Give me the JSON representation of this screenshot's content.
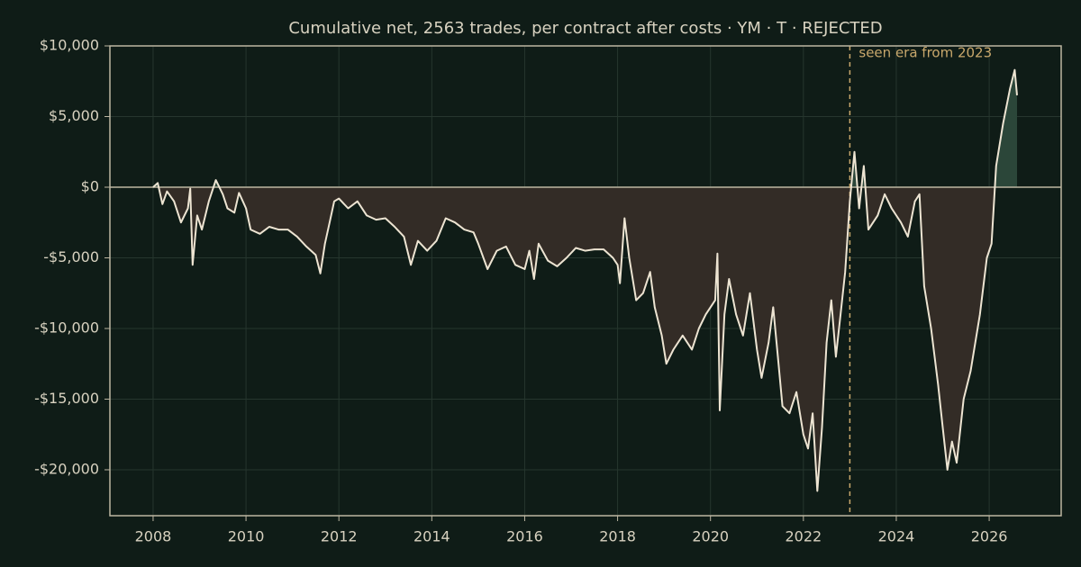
{
  "chart_data": {
    "type": "line",
    "title": "Cumulative net, 2563 trades, per contract after costs  ·  YM · T · REJECTED",
    "x": [
      2008.0,
      2008.1,
      2008.2,
      2008.3,
      2008.45,
      2008.6,
      2008.75,
      2008.8,
      2008.85,
      2008.95,
      2009.05,
      2009.2,
      2009.35,
      2009.5,
      2009.6,
      2009.75,
      2009.85,
      2010.0,
      2010.1,
      2010.3,
      2010.5,
      2010.7,
      2010.9,
      2011.1,
      2011.3,
      2011.5,
      2011.6,
      2011.7,
      2011.8,
      2011.9,
      2012.0,
      2012.2,
      2012.4,
      2012.6,
      2012.8,
      2013.0,
      2013.2,
      2013.4,
      2013.55,
      2013.7,
      2013.9,
      2014.1,
      2014.3,
      2014.5,
      2014.7,
      2014.9,
      2015.0,
      2015.2,
      2015.4,
      2015.6,
      2015.8,
      2016.0,
      2016.1,
      2016.2,
      2016.3,
      2016.5,
      2016.7,
      2016.9,
      2017.1,
      2017.3,
      2017.5,
      2017.7,
      2017.9,
      2018.0,
      2018.05,
      2018.15,
      2018.25,
      2018.4,
      2018.55,
      2018.7,
      2018.8,
      2018.95,
      2019.05,
      2019.2,
      2019.4,
      2019.6,
      2019.75,
      2019.9,
      2020.0,
      2020.1,
      2020.15,
      2020.2,
      2020.3,
      2020.4,
      2020.55,
      2020.7,
      2020.85,
      2021.0,
      2021.1,
      2021.25,
      2021.35,
      2021.45,
      2021.55,
      2021.7,
      2021.85,
      2022.0,
      2022.1,
      2022.2,
      2022.3,
      2022.4,
      2022.5,
      2022.6,
      2022.7,
      2022.8,
      2022.9,
      2023.0,
      2023.1,
      2023.2,
      2023.3,
      2023.4,
      2023.6,
      2023.75,
      2023.9,
      2024.1,
      2024.25,
      2024.4,
      2024.5,
      2024.6,
      2024.75,
      2024.9,
      2025.0,
      2025.1,
      2025.2,
      2025.3,
      2025.45,
      2025.6,
      2025.8,
      2025.95,
      2026.05,
      2026.15,
      2026.3,
      2026.45,
      2026.55,
      2026.6
    ],
    "values": [
      0,
      300,
      -1200,
      -300,
      -1000,
      -2500,
      -1500,
      -100,
      -5500,
      -2000,
      -3000,
      -1000,
      500,
      -500,
      -1500,
      -1800,
      -400,
      -1500,
      -3000,
      -3300,
      -2800,
      -3000,
      -3000,
      -3500,
      -4200,
      -4800,
      -6100,
      -4000,
      -2500,
      -1000,
      -800,
      -1500,
      -1000,
      -2000,
      -2300,
      -2200,
      -2800,
      -3500,
      -5500,
      -3800,
      -4500,
      -3800,
      -2200,
      -2500,
      -3000,
      -3200,
      -4000,
      -5800,
      -4500,
      -4200,
      -5500,
      -5800,
      -4500,
      -6500,
      -4000,
      -5200,
      -5600,
      -5000,
      -4300,
      -4500,
      -4400,
      -4400,
      -5000,
      -5500,
      -6800,
      -2200,
      -5000,
      -8000,
      -7500,
      -6000,
      -8500,
      -10500,
      -12500,
      -11500,
      -10500,
      -11500,
      -10000,
      -9000,
      -8500,
      -8000,
      -4700,
      -15800,
      -9000,
      -6500,
      -9000,
      -10500,
      -7500,
      -11500,
      -13500,
      -11000,
      -8500,
      -12000,
      -15500,
      -16000,
      -14500,
      -17500,
      -18500,
      -16000,
      -21500,
      -17000,
      -11000,
      -8000,
      -12000,
      -9000,
      -6000,
      -1000,
      2500,
      -1500,
      1500,
      -3000,
      -2000,
      -500,
      -1500,
      -2500,
      -3500,
      -1000,
      -500,
      -7000,
      -10000,
      -14000,
      -17000,
      -20000,
      -18000,
      -19500,
      -15000,
      -13000,
      -9000,
      -5000,
      -4000,
      1500,
      4500,
      7000,
      8300,
      6500
    ],
    "color": "#ede4d2",
    "fill_positive": "#2b4639",
    "fill_negative": "#332c26",
    "xlim": [
      2007.07,
      2027.55
    ],
    "xticks": [
      2008,
      2010,
      2012,
      2014,
      2016,
      2018,
      2020,
      2022,
      2024,
      2026
    ],
    "ylim": [
      -23250,
      10000
    ],
    "yticks": [
      {
        "value": -20000,
        "label": "-$20,000"
      },
      {
        "value": -15000,
        "label": "-$15,000"
      },
      {
        "value": -10000,
        "label": "-$10,000"
      },
      {
        "value": -5000,
        "label": "-$5,000"
      },
      {
        "value": 0,
        "label": "$0"
      },
      {
        "value": 5000,
        "label": "$5,000"
      },
      {
        "value": 10000,
        "label": "$10,000"
      }
    ],
    "grid": true,
    "annotations": [
      {
        "x": 2023,
        "text": "seen era from 2023",
        "color": "#c9a86c"
      }
    ]
  }
}
